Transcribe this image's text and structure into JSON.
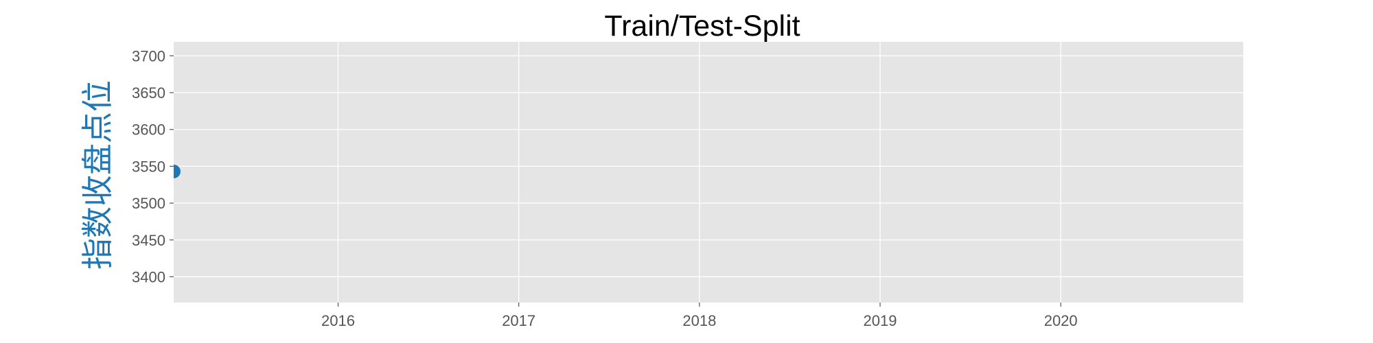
{
  "chart_data": {
    "type": "scatter",
    "title": "Train/Test-Split",
    "xlabel": "",
    "ylabel": "指数收盘点位",
    "x_tick_labels": [
      "2016",
      "2017",
      "2018",
      "2019",
      "2020"
    ],
    "x_tick_values": [
      2016,
      2017,
      2018,
      2019,
      2020
    ],
    "y_tick_values": [
      3400,
      3450,
      3500,
      3550,
      3600,
      3650,
      3700
    ],
    "y_tick_labels": [
      "3400",
      "3450",
      "3500",
      "3550",
      "3600",
      "3650",
      "3700"
    ],
    "xlim": [
      2015.09,
      2021.01
    ],
    "ylim": [
      3365,
      3719
    ],
    "grid": true,
    "series": [
      {
        "color": "#1f77b4",
        "points": [
          {
            "x": "2015-02-02",
            "x_num": 2015.09,
            "y": 3543
          }
        ]
      }
    ],
    "colors": {
      "plot_background": "#e5e5e5",
      "grid": "#ffffff",
      "ylabel": "#1f77b4",
      "marker": "#1f77b4"
    }
  }
}
